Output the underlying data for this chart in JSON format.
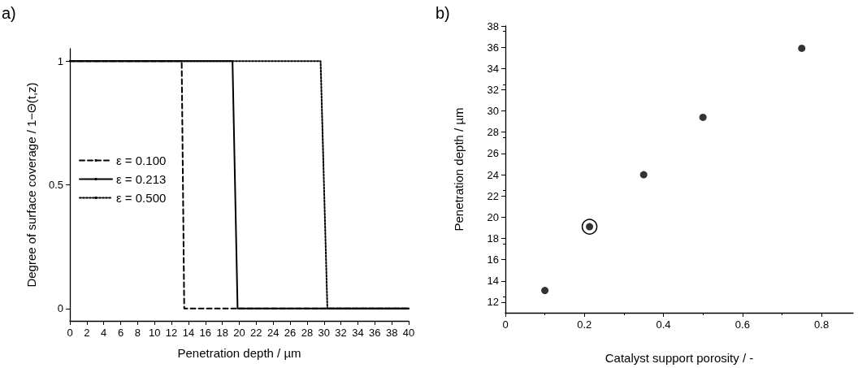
{
  "chart_data": [
    {
      "type": "line",
      "xlabel": "Penetration depth / µm",
      "ylabel": "Degree of surface coverage / 1−Θ(t,z)",
      "annotations": [
        "a)"
      ],
      "xlim": [
        0,
        40
      ],
      "xticks": [
        0,
        2,
        4,
        6,
        8,
        10,
        12,
        14,
        16,
        18,
        20,
        22,
        24,
        26,
        28,
        30,
        32,
        34,
        36,
        38,
        40
      ],
      "ylim": [
        -0.05,
        1.05
      ],
      "yticks": [
        0,
        0.5,
        1
      ],
      "legend": "left",
      "marker": "none",
      "grid": false,
      "series": [
        {
          "name": "ε = 0.100",
          "color": "#000000",
          "line_style": "dashed",
          "x": [
            0,
            13.2,
            13.5,
            40
          ],
          "values": [
            1,
            1,
            0,
            0
          ]
        },
        {
          "name": "ε = 0.213",
          "color": "#000000",
          "line_style": "solid",
          "x": [
            0,
            19.2,
            19.8,
            40
          ],
          "values": [
            1,
            1,
            0,
            0
          ]
        },
        {
          "name": "ε = 0.500",
          "color": "#000000",
          "line_style": "dotted",
          "x": [
            0,
            29.6,
            30.4,
            40
          ],
          "values": [
            1,
            1,
            0,
            0
          ]
        }
      ]
    },
    {
      "type": "scatter",
      "xlabel": "Catalyst support porosity / -",
      "ylabel": "Penetration depth / µm",
      "annotations": [
        "b)"
      ],
      "xlim": [
        0,
        0.88
      ],
      "xticks": [
        0,
        0.2,
        0.4,
        0.6,
        0.8
      ],
      "ylim": [
        11,
        38
      ],
      "yticks": [
        12,
        14,
        16,
        18,
        20,
        22,
        24,
        26,
        28,
        30,
        32,
        34,
        36,
        38
      ],
      "marker": "circle",
      "grid": false,
      "legend": false,
      "series": [
        {
          "color": "#000000",
          "x": [
            0.1,
            0.213,
            0.35,
            0.5,
            0.75
          ],
          "values": [
            13.1,
            19.1,
            24.0,
            29.4,
            35.9
          ]
        },
        {
          "color": "#000000",
          "x": [
            0.213
          ],
          "values": [
            19.1
          ]
        }
      ]
    }
  ]
}
